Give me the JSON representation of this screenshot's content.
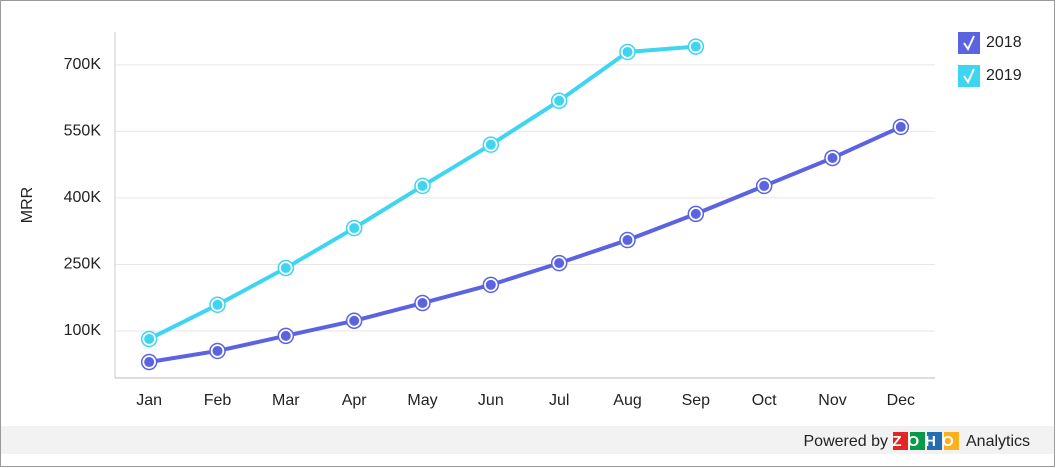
{
  "chart_data": {
    "type": "line",
    "y_label": "MRR",
    "categories": [
      "Jan",
      "Feb",
      "Mar",
      "Apr",
      "May",
      "Jun",
      "Jul",
      "Aug",
      "Sep",
      "Oct",
      "Nov",
      "Dec"
    ],
    "series": [
      {
        "name": "2018",
        "color": "#5b63e0",
        "values": [
          30000,
          55000,
          89000,
          123000,
          163000,
          204000,
          253000,
          305000,
          364000,
          427000,
          490000,
          560000
        ]
      },
      {
        "name": "2019",
        "color": "#3ed5f0",
        "values": [
          82000,
          159000,
          242000,
          332000,
          427000,
          520000,
          619000,
          729000,
          741000,
          null,
          null,
          null
        ]
      }
    ],
    "ylim": [
      -6000,
      774000
    ],
    "yticks": [
      {
        "value": 100000,
        "label": "100K"
      },
      {
        "value": 250000,
        "label": "250K"
      },
      {
        "value": 400000,
        "label": "400K"
      },
      {
        "value": 550000,
        "label": "550K"
      },
      {
        "value": 700000,
        "label": "700K"
      }
    ],
    "grid": true,
    "legend": "top-right"
  },
  "footer": {
    "powered_by": "Powered by",
    "brand": "ZOHO",
    "product": "Analytics"
  }
}
